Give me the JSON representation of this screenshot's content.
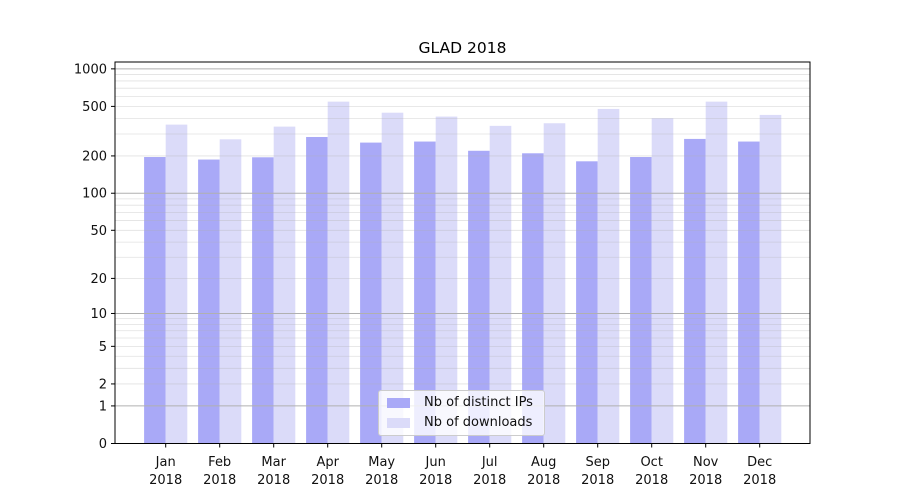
{
  "chart_data": {
    "type": "bar",
    "title": "GLAD 2018",
    "xlabel": "",
    "ylabel": "",
    "yscale": "log1p",
    "ylim": [
      0,
      1135
    ],
    "yticks": [
      0,
      1,
      2,
      5,
      10,
      20,
      50,
      100,
      200,
      500,
      1000
    ],
    "grid": "both",
    "legend_position": "lower center",
    "months": [
      "Jan",
      "Feb",
      "Mar",
      "Apr",
      "May",
      "Jun",
      "Jul",
      "Aug",
      "Sep",
      "Oct",
      "Nov",
      "Dec"
    ],
    "year_label": "2018",
    "categories": [
      "Jan 2018",
      "Feb 2018",
      "Mar 2018",
      "Apr 2018",
      "May 2018",
      "Jun 2018",
      "Jul 2018",
      "Aug 2018",
      "Sep 2018",
      "Oct 2018",
      "Nov 2018",
      "Dec 2018"
    ],
    "series": [
      {
        "name": "Nb of distinct IPs",
        "color": "#a9a9f7",
        "values": [
          196,
          187,
          195,
          284,
          256,
          261,
          220,
          210,
          181,
          196,
          274,
          261
        ]
      },
      {
        "name": "Nb of downloads",
        "color": "#dbdbf9",
        "values": [
          357,
          272,
          344,
          546,
          445,
          414,
          349,
          366,
          477,
          402,
          546,
          427
        ]
      }
    ]
  },
  "colors": {
    "grid_major": "#b0b0b0",
    "grid_minor_rgba": "rgba(176,176,176,0.38)",
    "spine": "#000000",
    "tick_label": "#111111",
    "background": "#ffffff",
    "legend_border": "#cccccc"
  }
}
